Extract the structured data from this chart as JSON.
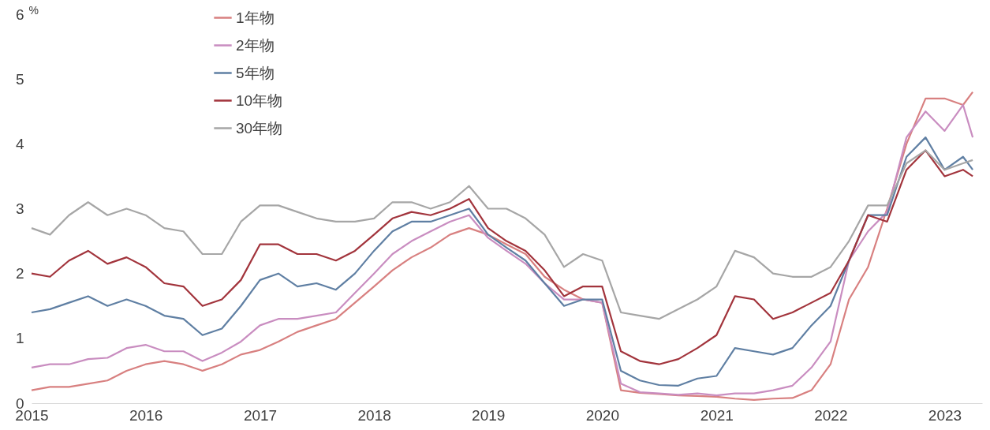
{
  "chart_data": {
    "type": "line",
    "ylabel": "%",
    "x": [
      "2015-01",
      "2015-03",
      "2015-05",
      "2015-07",
      "2015-09",
      "2015-11",
      "2016-01",
      "2016-03",
      "2016-05",
      "2016-07",
      "2016-09",
      "2016-11",
      "2017-01",
      "2017-03",
      "2017-05",
      "2017-07",
      "2017-09",
      "2017-11",
      "2018-01",
      "2018-03",
      "2018-05",
      "2018-07",
      "2018-09",
      "2018-11",
      "2019-01",
      "2019-03",
      "2019-05",
      "2019-07",
      "2019-09",
      "2019-11",
      "2020-01",
      "2020-03",
      "2020-05",
      "2020-07",
      "2020-09",
      "2020-11",
      "2021-01",
      "2021-03",
      "2021-05",
      "2021-07",
      "2021-09",
      "2021-11",
      "2022-01",
      "2022-03",
      "2022-05",
      "2022-07",
      "2022-09",
      "2022-11",
      "2023-01",
      "2023-03",
      "2023-04"
    ],
    "series": [
      {
        "name": "1年物",
        "color": "#d88080",
        "values": [
          0.2,
          0.25,
          0.25,
          0.3,
          0.35,
          0.5,
          0.6,
          0.65,
          0.6,
          0.5,
          0.6,
          0.75,
          0.82,
          0.95,
          1.1,
          1.2,
          1.3,
          1.55,
          1.8,
          2.05,
          2.25,
          2.4,
          2.6,
          2.7,
          2.6,
          2.45,
          2.3,
          1.95,
          1.75,
          1.6,
          1.55,
          0.2,
          0.16,
          0.14,
          0.12,
          0.11,
          0.1,
          0.07,
          0.05,
          0.07,
          0.08,
          0.2,
          0.6,
          1.6,
          2.1,
          3.0,
          4.0,
          4.7,
          4.7,
          4.6,
          4.8
        ]
      },
      {
        "name": "2年物",
        "color": "#c98dc0",
        "values": [
          0.55,
          0.6,
          0.6,
          0.68,
          0.7,
          0.85,
          0.9,
          0.8,
          0.8,
          0.65,
          0.78,
          0.95,
          1.2,
          1.3,
          1.3,
          1.35,
          1.4,
          1.7,
          2.0,
          2.3,
          2.5,
          2.65,
          2.8,
          2.9,
          2.55,
          2.35,
          2.15,
          1.85,
          1.6,
          1.6,
          1.55,
          0.3,
          0.17,
          0.15,
          0.13,
          0.15,
          0.12,
          0.15,
          0.15,
          0.2,
          0.27,
          0.55,
          0.95,
          2.2,
          2.65,
          2.95,
          4.1,
          4.5,
          4.2,
          4.6,
          4.1
        ]
      },
      {
        "name": "5年物",
        "color": "#5f7fa3",
        "values": [
          1.4,
          1.45,
          1.55,
          1.65,
          1.5,
          1.6,
          1.5,
          1.35,
          1.3,
          1.05,
          1.15,
          1.5,
          1.9,
          2.0,
          1.8,
          1.85,
          1.75,
          2.0,
          2.35,
          2.65,
          2.8,
          2.8,
          2.9,
          3.0,
          2.6,
          2.4,
          2.2,
          1.85,
          1.5,
          1.6,
          1.6,
          0.5,
          0.35,
          0.28,
          0.27,
          0.38,
          0.42,
          0.85,
          0.8,
          0.75,
          0.85,
          1.2,
          1.5,
          2.2,
          2.9,
          2.9,
          3.8,
          4.1,
          3.6,
          3.8,
          3.6
        ]
      },
      {
        "name": "10年物",
        "color": "#a2343c",
        "values": [
          2.0,
          1.95,
          2.2,
          2.35,
          2.15,
          2.25,
          2.1,
          1.85,
          1.8,
          1.5,
          1.6,
          1.9,
          2.45,
          2.45,
          2.3,
          2.3,
          2.2,
          2.35,
          2.6,
          2.85,
          2.95,
          2.9,
          3.0,
          3.15,
          2.7,
          2.5,
          2.35,
          2.05,
          1.65,
          1.8,
          1.8,
          0.8,
          0.65,
          0.6,
          0.68,
          0.85,
          1.05,
          1.65,
          1.6,
          1.3,
          1.4,
          1.55,
          1.7,
          2.2,
          2.9,
          2.8,
          3.6,
          3.9,
          3.5,
          3.6,
          3.5
        ]
      },
      {
        "name": "30年物",
        "color": "#a6a6a6",
        "values": [
          2.7,
          2.6,
          2.9,
          3.1,
          2.9,
          3.0,
          2.9,
          2.7,
          2.65,
          2.3,
          2.3,
          2.8,
          3.05,
          3.05,
          2.95,
          2.85,
          2.8,
          2.8,
          2.85,
          3.1,
          3.1,
          3.0,
          3.1,
          3.35,
          3.0,
          3.0,
          2.85,
          2.6,
          2.1,
          2.3,
          2.2,
          1.4,
          1.35,
          1.3,
          1.45,
          1.6,
          1.8,
          2.35,
          2.25,
          2.0,
          1.95,
          1.95,
          2.1,
          2.5,
          3.05,
          3.05,
          3.7,
          3.9,
          3.6,
          3.7,
          3.75
        ]
      }
    ],
    "xlim": [
      "2015-01-01",
      "2023-05-01"
    ],
    "xticks": [
      "2015",
      "2016",
      "2017",
      "2018",
      "2019",
      "2020",
      "2021",
      "2022",
      "2023"
    ],
    "ylim": [
      0,
      6
    ],
    "yticks": [
      0,
      1,
      2,
      3,
      4,
      5,
      6
    ],
    "grid": false,
    "legend": "top left",
    "marker": "none",
    "line_style": "solid"
  }
}
